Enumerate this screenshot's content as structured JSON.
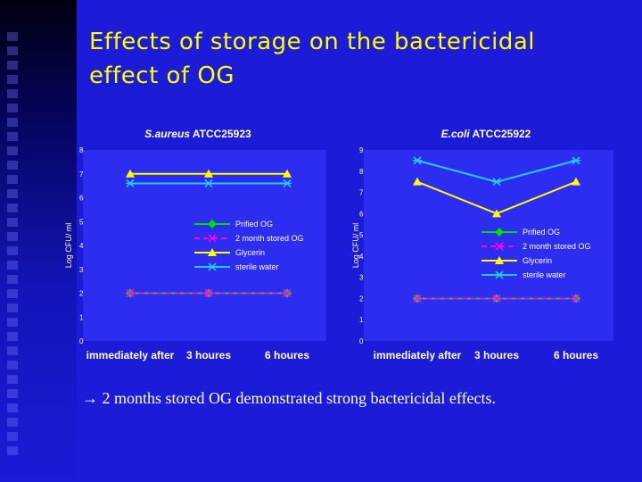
{
  "slide": {
    "title_line1": "Effects of storage on the bactericidal",
    "title_line2": "effect of OG",
    "conclusion": "→ 2 months stored OG demonstrated strong bactericidal effects."
  },
  "colors": {
    "background": "#1b1bd8",
    "title": "#ffff00",
    "plot_area": "#2d2df2",
    "prified_og": "#00e000",
    "stored_og": "#ff00ff",
    "glycerin": "#ffff00",
    "sterile_water": "#22ccff"
  },
  "chart_data": [
    {
      "type": "line",
      "title_italic": "S.aureus",
      "title_rest": "ATCC25923",
      "ylabel": "Log CFU/ ml",
      "ylim": [
        0,
        8
      ],
      "yticks": [
        "0",
        "1",
        "2",
        "3",
        "4",
        "5",
        "6",
        "7",
        "8"
      ],
      "categories": [
        "immediately after",
        "3 houres",
        "6 houres"
      ],
      "legend": "center-right",
      "series": [
        {
          "name": "Prified OG",
          "values": [
            2,
            2,
            2
          ],
          "marker": "diamond",
          "dash": "solid",
          "color": "#00e000"
        },
        {
          "name": "2 month stored OG",
          "values": [
            2,
            2,
            2
          ],
          "marker": "x",
          "dash": "dashed",
          "color": "#ff00ff"
        },
        {
          "name": "Glycerin",
          "values": [
            7,
            7,
            7
          ],
          "marker": "triangle",
          "dash": "solid",
          "color": "#ffff00"
        },
        {
          "name": "sterile water",
          "values": [
            6.6,
            6.6,
            6.6
          ],
          "marker": "asterisk",
          "dash": "solid",
          "color": "#22ccff"
        }
      ]
    },
    {
      "type": "line",
      "title_italic": "E.coli",
      "title_rest": "ATCC25922",
      "ylabel": "Log CFU/ ml",
      "ylim": [
        0,
        9
      ],
      "yticks": [
        "0",
        "1",
        "2",
        "3",
        "4",
        "5",
        "6",
        "7",
        "8",
        "9"
      ],
      "categories": [
        "immediately after",
        "3 houres",
        "6 houres"
      ],
      "legend": "center-right",
      "series": [
        {
          "name": "Prified OG",
          "values": [
            2,
            2,
            2
          ],
          "marker": "diamond",
          "dash": "solid",
          "color": "#00e000"
        },
        {
          "name": "2 month stored OG",
          "values": [
            2,
            2,
            2
          ],
          "marker": "x",
          "dash": "dashed",
          "color": "#ff00ff"
        },
        {
          "name": "Glycerin",
          "values": [
            7.5,
            6,
            7.5
          ],
          "marker": "triangle",
          "dash": "solid",
          "color": "#ffff00"
        },
        {
          "name": "sterile water",
          "values": [
            8.5,
            7.5,
            8.5
          ],
          "marker": "asterisk",
          "dash": "solid",
          "color": "#22ccff"
        }
      ]
    }
  ]
}
